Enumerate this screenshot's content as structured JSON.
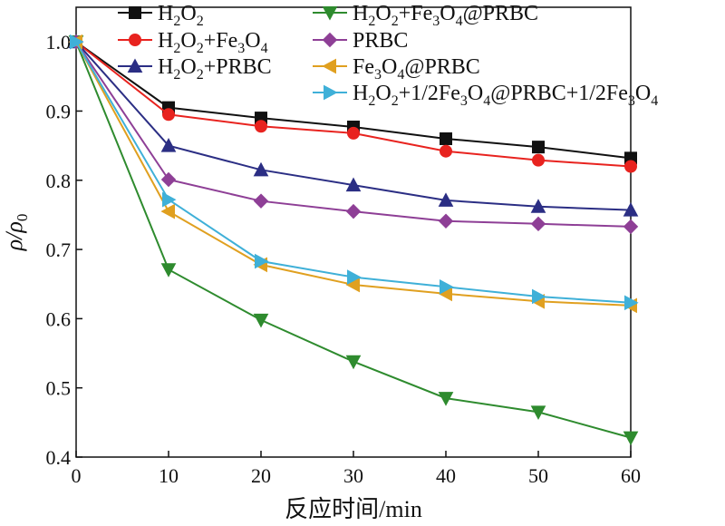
{
  "chart_data": {
    "type": "line",
    "title": "",
    "xlabel": "反应时间/min",
    "ylabel": "ρ/ρ0",
    "xlim": [
      0,
      60
    ],
    "ylim": [
      0.4,
      1.05
    ],
    "x_ticks": [
      "0",
      "10",
      "20",
      "30",
      "40",
      "50",
      "60"
    ],
    "y_ticks": [
      "0.4",
      "0.5",
      "0.6",
      "0.7",
      "0.8",
      "0.9",
      "1.0"
    ],
    "grid": false,
    "legend_position": "top",
    "x": [
      0,
      10,
      20,
      30,
      40,
      50,
      60
    ],
    "series": [
      {
        "name": "H2O2",
        "legend_parts": [
          [
            "H",
            "n"
          ],
          [
            "2",
            "sub"
          ],
          [
            "O",
            "n"
          ],
          [
            "2",
            "sub"
          ]
        ],
        "color": "#111111",
        "marker": "square",
        "values": [
          1.0,
          0.905,
          0.89,
          0.877,
          0.86,
          0.848,
          0.832
        ]
      },
      {
        "name": "H2O2+Fe3O4",
        "legend_parts": [
          [
            "H",
            "n"
          ],
          [
            "2",
            "sub"
          ],
          [
            "O",
            "n"
          ],
          [
            "2",
            "sub"
          ],
          [
            "+Fe",
            "n"
          ],
          [
            "3",
            "sub"
          ],
          [
            "O",
            "n"
          ],
          [
            "4",
            "sub"
          ]
        ],
        "color": "#e8231f",
        "marker": "circle",
        "values": [
          1.0,
          0.895,
          0.878,
          0.868,
          0.842,
          0.829,
          0.82
        ]
      },
      {
        "name": "H2O2+PRBC",
        "legend_parts": [
          [
            "H",
            "n"
          ],
          [
            "2",
            "sub"
          ],
          [
            "O",
            "n"
          ],
          [
            "2",
            "sub"
          ],
          [
            "+PRBC",
            "n"
          ]
        ],
        "color": "#2b2e84",
        "marker": "triangle-up",
        "values": [
          1.0,
          0.85,
          0.815,
          0.793,
          0.771,
          0.762,
          0.757
        ]
      },
      {
        "name": "H2O2+Fe3O4@PRBC",
        "legend_parts": [
          [
            "H",
            "n"
          ],
          [
            "2",
            "sub"
          ],
          [
            "O",
            "n"
          ],
          [
            "2",
            "sub"
          ],
          [
            "+Fe",
            "n"
          ],
          [
            "3",
            "sub"
          ],
          [
            "O",
            "n"
          ],
          [
            "4",
            "sub"
          ],
          [
            "@PRBC",
            "n"
          ]
        ],
        "color": "#2e8b2e",
        "marker": "triangle-down",
        "values": [
          1.0,
          0.671,
          0.598,
          0.538,
          0.485,
          0.465,
          0.428
        ]
      },
      {
        "name": "PRBC",
        "legend_parts": [
          [
            "PRBC",
            "n"
          ]
        ],
        "color": "#8e3f96",
        "marker": "diamond",
        "values": [
          1.0,
          0.801,
          0.77,
          0.755,
          0.741,
          0.737,
          0.733
        ]
      },
      {
        "name": "Fe3O4@PRBC",
        "legend_parts": [
          [
            "Fe",
            "n"
          ],
          [
            "3",
            "sub"
          ],
          [
            "O",
            "n"
          ],
          [
            "4",
            "sub"
          ],
          [
            "@PRBC",
            "n"
          ]
        ],
        "color": "#e0a020",
        "marker": "triangle-left",
        "values": [
          1.0,
          0.755,
          0.678,
          0.649,
          0.636,
          0.625,
          0.619
        ]
      },
      {
        "name": "H2O2+1/2Fe3O4@PRBC+1/2Fe3O4",
        "legend_parts": [
          [
            "H",
            "n"
          ],
          [
            "2",
            "sub"
          ],
          [
            "O",
            "n"
          ],
          [
            "2",
            "sub"
          ],
          [
            "+1/2Fe",
            "n"
          ],
          [
            "3",
            "sub"
          ],
          [
            "O",
            "n"
          ],
          [
            "4",
            "sub"
          ],
          [
            "@PRBC+1/2Fe",
            "n"
          ],
          [
            "3",
            "sub"
          ],
          [
            "O",
            "n"
          ],
          [
            "4",
            "sub"
          ]
        ],
        "color": "#3fb0d8",
        "marker": "triangle-right",
        "values": [
          1.0,
          0.772,
          0.683,
          0.66,
          0.646,
          0.632,
          0.623
        ]
      }
    ]
  }
}
